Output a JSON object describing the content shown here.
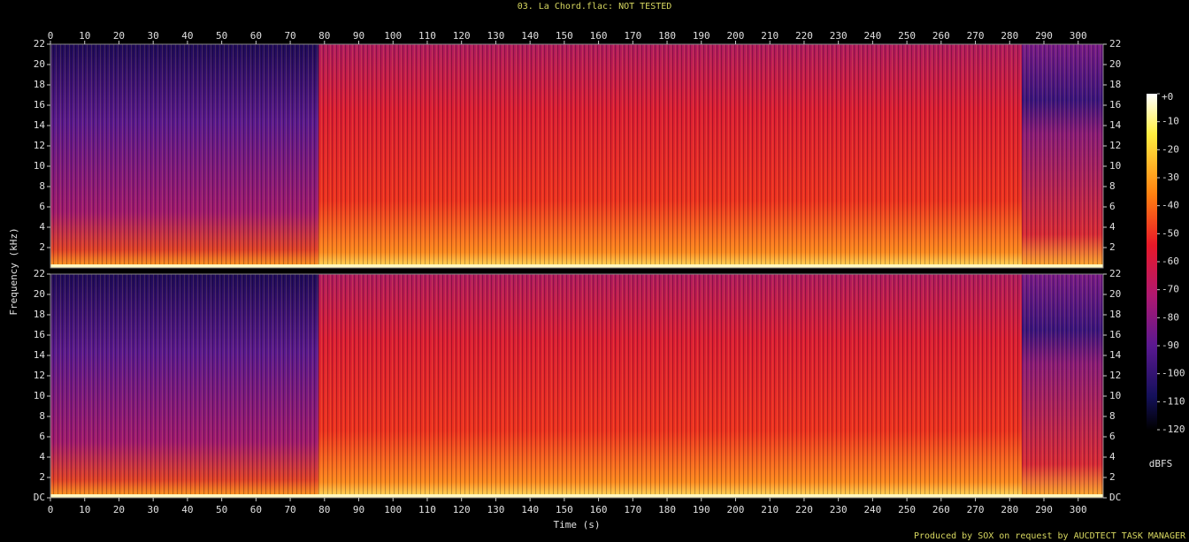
{
  "chart_data": [
    {
      "type": "spectrogram",
      "title": "03. La Chord.flac: NOT TESTED",
      "ylabel": "Frequency (kHz)",
      "xlim": [
        0,
        307.3
      ],
      "xticks": [
        0,
        10,
        20,
        30,
        40,
        50,
        60,
        70,
        80,
        90,
        100,
        110,
        120,
        130,
        140,
        150,
        160,
        170,
        180,
        190,
        200,
        210,
        220,
        230,
        240,
        250,
        260,
        270,
        280,
        290,
        300
      ],
      "ylim": [
        0,
        22
      ],
      "yticks": [
        2,
        4,
        6,
        8,
        10,
        12,
        14,
        16,
        18,
        20,
        22
      ],
      "colorbar": {
        "label": "dBFS",
        "lim": [
          -120,
          0
        ],
        "ticks": [
          {
            "value": 0,
            "label": "+0"
          },
          -10,
          -20,
          -30,
          -40,
          -50,
          -60,
          -70,
          -80,
          -90,
          -100,
          -110,
          -120
        ]
      }
    },
    {
      "type": "spectrogram",
      "xlabel": "Time (s)",
      "xlim": [
        0,
        307.3
      ],
      "xticks": [
        0,
        10,
        20,
        30,
        40,
        50,
        60,
        70,
        80,
        90,
        100,
        110,
        120,
        130,
        140,
        150,
        160,
        170,
        180,
        190,
        200,
        210,
        220,
        230,
        240,
        250,
        260,
        270,
        280,
        290,
        300
      ],
      "ylim": [
        0,
        22
      ],
      "yticks": [
        {
          "value": 0,
          "label": "DC"
        },
        2,
        4,
        6,
        8,
        10,
        12,
        14,
        16,
        18,
        20,
        22
      ]
    }
  ],
  "footer": "Produced by SOX on request by AUCDTECT TASK MANAGER"
}
